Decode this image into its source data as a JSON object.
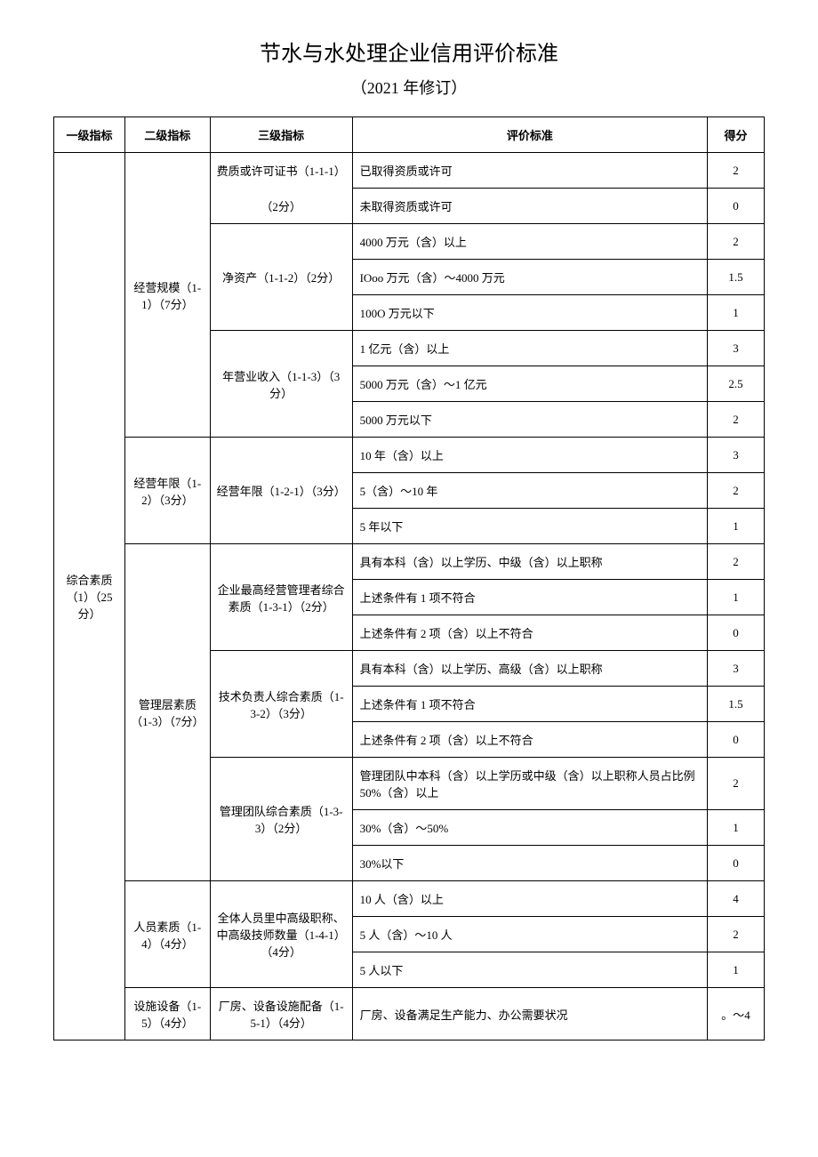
{
  "title": "节水与水处理企业信用评价标准",
  "subtitle": "（2021 年修订）",
  "headers": {
    "l1": "一级指标",
    "l2": "二级指标",
    "l3": "三级指标",
    "criteria": "评价标准",
    "score": "得分"
  },
  "level1": {
    "label": "综合素质（1）（25分）"
  },
  "level2": {
    "s11": "经营规模（1-1）（7分）",
    "s12": "经营年限（1-2）（3分）",
    "s13": "管理层素质（1-3）（7分）",
    "s14": "人员素质（1-4）（4分）",
    "s15": "设施设备（1-5）（4分）"
  },
  "level3": {
    "s111_a": "费质或许可证书（1-1-1）",
    "s111_b": "（2分）",
    "s112": "净资产（1-1-2）（2分）",
    "s113": "年营业收入（1-1-3）（3分）",
    "s121": "经营年限（1-2-1）（3分）",
    "s131": "企业最高经营管理者综合素质（1-3-1）（2分）",
    "s132": "技术负责人综合素质（1-3-2）（3分）",
    "s133": "管理团队综合素质（1-3-3）（2分）",
    "s141": "全体人员里中高级职称、中高级技师数量（1-4-1）（4分）",
    "s151": "厂房、设备设施配备（1-5-1）（4分）"
  },
  "rows": {
    "r1": {
      "crit": "已取得资质或许可",
      "score": "2"
    },
    "r2": {
      "crit": "未取得资质或许可",
      "score": "0"
    },
    "r3": {
      "crit": "4000 万元（含）以上",
      "score": "2"
    },
    "r4": {
      "crit": "IOoo 万元（含）～4000 万元",
      "score": "1.5"
    },
    "r5": {
      "crit": "100O 万元以下",
      "score": "1"
    },
    "r6": {
      "crit": "1 亿元（含）以上",
      "score": "3"
    },
    "r7": {
      "crit": "5000 万元（含）～1 亿元",
      "score": "2.5"
    },
    "r8": {
      "crit": "5000 万元以下",
      "score": "2"
    },
    "r9": {
      "crit": "10 年（含）以上",
      "score": "3"
    },
    "r10": {
      "crit": "5（含）～10 年",
      "score": "2"
    },
    "r11": {
      "crit": "5 年以下",
      "score": "1"
    },
    "r12": {
      "crit": "具有本科（含）以上学历、中级（含）以上职称",
      "score": "2"
    },
    "r13": {
      "crit": "上述条件有 1 项不符合",
      "score": "1"
    },
    "r14": {
      "crit": "上述条件有 2 项（含）以上不符合",
      "score": "0"
    },
    "r15": {
      "crit": "具有本科（含）以上学历、高级（含）以上职称",
      "score": "3"
    },
    "r16": {
      "crit": "上述条件有 1 项不符合",
      "score": "1.5"
    },
    "r17": {
      "crit": "上述条件有 2 项（含）以上不符合",
      "score": "0"
    },
    "r18": {
      "crit": "管理团队中本科（含）以上学历或中级（含）以上职称人员占比例 50%（含）以上",
      "score": "2"
    },
    "r19": {
      "crit": "30%（含）～50%",
      "score": "1"
    },
    "r20": {
      "crit": "30%以下",
      "score": "0"
    },
    "r21": {
      "crit": "10 人（含）以上",
      "score": "4"
    },
    "r22": {
      "crit": "5 人（含）～10 人",
      "score": "2"
    },
    "r23": {
      "crit": "5 人以下",
      "score": "1"
    },
    "r24": {
      "crit": "厂房、设备满足生产能力、办公需要状况",
      "score": "。～4"
    }
  }
}
